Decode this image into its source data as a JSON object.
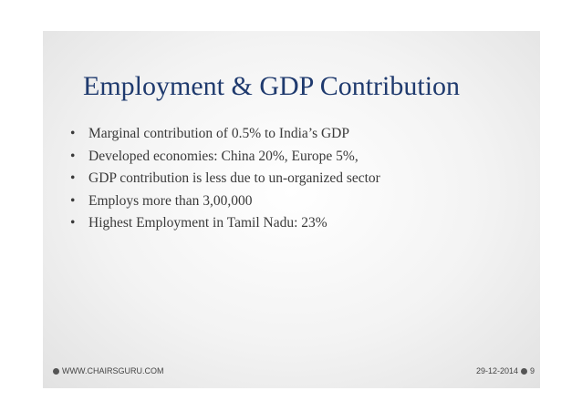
{
  "slide": {
    "title": "Employment & GDP Contribution",
    "bullets": [
      "Marginal contribution of 0.5% to India’s GDP",
      "Developed economies: China 20%, Europe 5%,",
      "GDP contribution is less due to un-organized sector",
      "Employs more than 3,00,000",
      "Highest Employment in Tamil Nadu: 23%"
    ],
    "footer": {
      "left": "WWW.CHAIRSGURU.COM",
      "date": "29-12-2014",
      "page": "9"
    }
  }
}
